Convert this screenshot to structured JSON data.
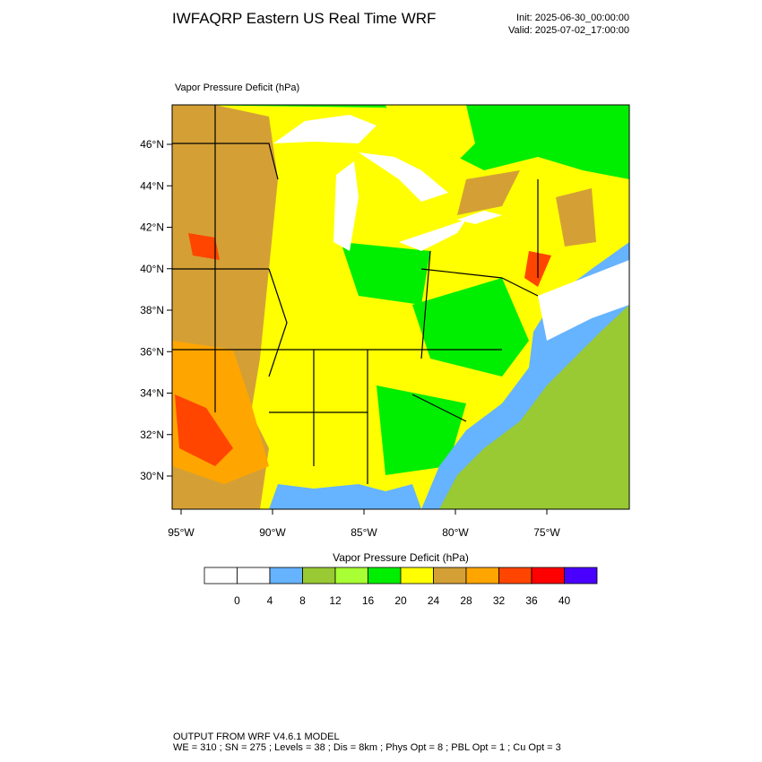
{
  "header": {
    "title": "IWFAQRP Eastern US Real Time WRF",
    "init": "Init: 2025-06-30_00:00:00",
    "valid": "Valid: 2025-07-02_17:00:00"
  },
  "map": {
    "field_label": "Vapor Pressure Deficit   (hPa)",
    "lat_labels": [
      "46°N",
      "44°N",
      "42°N",
      "40°N",
      "38°N",
      "36°N",
      "34°N",
      "32°N",
      "30°N"
    ],
    "lon_labels": [
      "95°W",
      "90°W",
      "85°W",
      "80°W",
      "75°W"
    ]
  },
  "colorbar": {
    "title": "Vapor Pressure Deficit  (hPa)",
    "colors": [
      "#ffffff",
      "#ffffff",
      "#66b3ff",
      "#99c933",
      "#a8ff33",
      "#00ee00",
      "#ffff00",
      "#d4a035",
      "#ffa500",
      "#ff4500",
      "#ff0000",
      "#4a00ff"
    ],
    "labels": [
      0,
      4,
      8,
      12,
      16,
      20,
      24,
      28,
      32,
      36,
      40
    ]
  },
  "footer": {
    "lines": [
      "OUTPUT FROM WRF V4.6.1 MODEL",
      "WE = 310 ; SN = 275 ; Levels = 38 ; Dis = 8km ; Phys Opt = 8 ; PBL Opt = 1 ; Cu Opt = 3"
    ]
  }
}
